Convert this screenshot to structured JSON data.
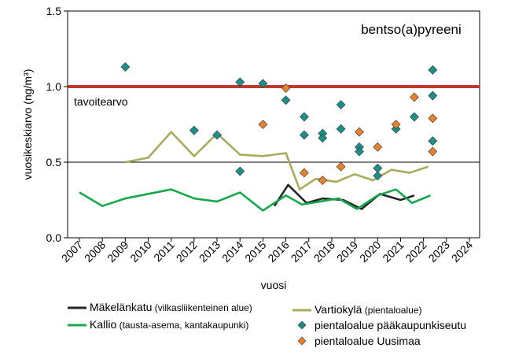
{
  "chart_data": {
    "type": "line",
    "title": "bentso(a)pyreeni",
    "xlabel": "vuosi",
    "ylabel": "vuosikeskiarvo (ng/m³)",
    "ylim": [
      0,
      1.5
    ],
    "y_ticks": [
      "0.0",
      "0.5",
      "1.0",
      "1.5"
    ],
    "x_ticks": [
      "2007",
      "2008",
      "2009",
      "2010",
      "2011",
      "2012",
      "2013",
      "2014",
      "2015",
      "2016",
      "2017",
      "2018",
      "2019",
      "2020",
      "2021",
      "2022",
      "2023",
      "2024"
    ],
    "target": {
      "label": "tavoitearvo",
      "value": 1.0,
      "color": "#c0392b"
    },
    "reference_line": {
      "value": 0.5
    },
    "series": [
      {
        "name": "Mäkelänkatu",
        "name_note": "(vilkasliikenteinen alue)",
        "type": "line",
        "color": "#262626",
        "points": [
          [
            2015.5,
            0.21
          ],
          [
            2016.1,
            0.35
          ],
          [
            2016.9,
            0.23
          ],
          [
            2017.6,
            0.26
          ],
          [
            2018.5,
            0.25
          ],
          [
            2019.3,
            0.19
          ],
          [
            2020.1,
            0.29
          ],
          [
            2021.0,
            0.25
          ],
          [
            2021.6,
            0.28
          ]
        ]
      },
      {
        "name": "Kallio",
        "name_note": "(tausta-asema, kantakaupunki)",
        "type": "line",
        "color": "#17a84b",
        "points": [
          [
            2007,
            0.3
          ],
          [
            2008,
            0.21
          ],
          [
            2009,
            0.26
          ],
          [
            2010,
            0.29
          ],
          [
            2011,
            0.32
          ],
          [
            2012,
            0.26
          ],
          [
            2013,
            0.24
          ],
          [
            2014,
            0.3
          ],
          [
            2015,
            0.18
          ],
          [
            2016,
            0.28
          ],
          [
            2016.7,
            0.22
          ],
          [
            2017.5,
            0.24
          ],
          [
            2018.3,
            0.26
          ],
          [
            2019.1,
            0.19
          ],
          [
            2020.0,
            0.28
          ],
          [
            2020.8,
            0.32
          ],
          [
            2021.5,
            0.23
          ],
          [
            2022.3,
            0.28
          ]
        ]
      },
      {
        "name": "Vartiokylä",
        "name_note": "(pientaloalue)",
        "type": "line",
        "color": "#a8ab5c",
        "points": [
          [
            2009,
            0.5
          ],
          [
            2010,
            0.53
          ],
          [
            2011,
            0.7
          ],
          [
            2012,
            0.54
          ],
          [
            2013,
            0.69
          ],
          [
            2014,
            0.55
          ],
          [
            2015,
            0.54
          ],
          [
            2016,
            0.56
          ],
          [
            2016.6,
            0.32
          ],
          [
            2017.3,
            0.39
          ],
          [
            2018.2,
            0.37
          ],
          [
            2019.0,
            0.42
          ],
          [
            2019.8,
            0.38
          ],
          [
            2020.6,
            0.45
          ],
          [
            2021.4,
            0.43
          ],
          [
            2022.2,
            0.47
          ]
        ]
      },
      {
        "name": "pientaloalue pääkaupunkiseutu",
        "type": "scatter",
        "marker": "diamond",
        "color": "#1b8f8a",
        "points": [
          [
            2009.0,
            1.13
          ],
          [
            2012.0,
            0.71
          ],
          [
            2013.0,
            0.68
          ],
          [
            2014.0,
            1.03
          ],
          [
            2014.0,
            0.44
          ],
          [
            2015.0,
            1.02
          ],
          [
            2016.0,
            0.91
          ],
          [
            2016.8,
            0.8
          ],
          [
            2016.8,
            0.68
          ],
          [
            2017.6,
            0.69
          ],
          [
            2017.6,
            0.66
          ],
          [
            2018.4,
            0.88
          ],
          [
            2018.4,
            0.72
          ],
          [
            2019.2,
            0.6
          ],
          [
            2019.2,
            0.57
          ],
          [
            2020.0,
            0.46
          ],
          [
            2020.0,
            0.41
          ],
          [
            2020.8,
            0.72
          ],
          [
            2021.6,
            0.8
          ],
          [
            2022.4,
            1.11
          ],
          [
            2022.4,
            0.94
          ],
          [
            2022.4,
            0.64
          ]
        ]
      },
      {
        "name": "pientaloalue Uusimaa",
        "type": "scatter",
        "marker": "diamond",
        "color": "#e6812d",
        "points": [
          [
            2015.0,
            0.75
          ],
          [
            2016.0,
            0.99
          ],
          [
            2016.8,
            0.43
          ],
          [
            2017.6,
            0.38
          ],
          [
            2018.4,
            0.47
          ],
          [
            2019.2,
            0.7
          ],
          [
            2020.0,
            0.6
          ],
          [
            2020.8,
            0.75
          ],
          [
            2021.6,
            0.93
          ],
          [
            2022.4,
            0.57
          ],
          [
            2022.4,
            0.79
          ]
        ]
      }
    ],
    "legend": [
      {
        "label": "Mäkelänkatu",
        "note": "(vilkasliikenteinen alue)",
        "kind": "line",
        "color": "#262626"
      },
      {
        "label": "Kallio",
        "note": "(tausta-asema, kantakaupunki)",
        "kind": "line",
        "color": "#17a84b"
      },
      {
        "label": "Vartiokylä",
        "note": "(pientaloalue)",
        "kind": "line",
        "color": "#a8ab5c"
      },
      {
        "label": "pientaloalue pääkaupunkiseutu",
        "note": "",
        "kind": "diamond",
        "color": "#1b8f8a"
      },
      {
        "label": "pientaloalue Uusimaa",
        "note": "",
        "kind": "diamond",
        "color": "#e6812d"
      }
    ]
  }
}
